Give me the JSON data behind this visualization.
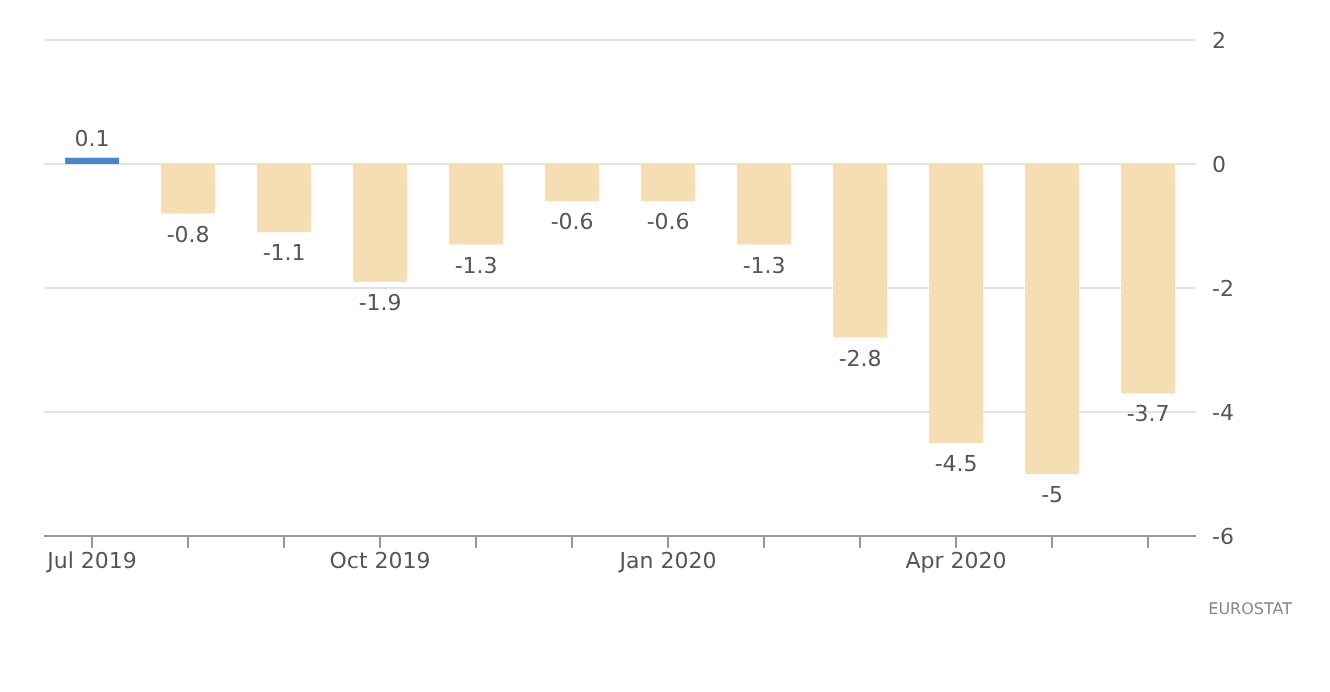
{
  "chart_data": {
    "type": "bar",
    "categories": [
      "Jul 2019",
      null,
      null,
      "Oct 2019",
      null,
      null,
      "Jan 2020",
      null,
      null,
      "Apr 2020",
      null,
      null
    ],
    "values": [
      0.1,
      -0.8,
      -1.1,
      -1.9,
      -1.3,
      -0.6,
      -0.6,
      -1.3,
      -2.8,
      -4.5,
      -5,
      -3.7
    ],
    "colors": [
      "#4a86c5",
      "#f5deb3",
      "#f5deb3",
      "#f5deb3",
      "#f5deb3",
      "#f5deb3",
      "#f5deb3",
      "#f5deb3",
      "#f5deb3",
      "#f5deb3",
      "#f5deb3",
      "#f5deb3"
    ],
    "ylim": [
      -6,
      2
    ],
    "yticks": [
      2,
      0,
      -2,
      -4,
      -6
    ],
    "grid": "y",
    "data_labels": true,
    "annotations": [
      "EUROSTAT"
    ]
  }
}
